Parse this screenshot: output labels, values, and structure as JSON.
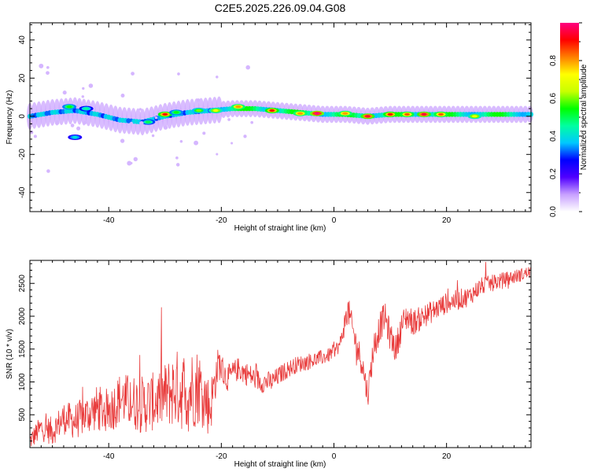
{
  "figure": {
    "title": "C2E5.2025.226.09.04.G08"
  },
  "chart_data": [
    {
      "type": "heatmap",
      "title": "C2E5.2025.226.09.04.G08",
      "xlabel": "Height of straight line (km)",
      "ylabel": "Frequency (Hz)",
      "xlim": [
        -54,
        35
      ],
      "ylim": [
        -50,
        49
      ],
      "xticks": [
        "-40",
        "-20",
        "0",
        "20"
      ],
      "yticks": [
        "-40",
        "-20",
        "0",
        "20",
        "40"
      ],
      "colorbar": {
        "label": "Normalized spectral amplitude",
        "range": [
          0,
          1
        ],
        "ticks": [
          "0.0",
          "0.2",
          "0.4",
          "0.6",
          "0.8"
        ],
        "colormap": [
          "#ffffff",
          "#c8a0ff",
          "#5000ff",
          "#0000ff",
          "#00c8ff",
          "#00ffa0",
          "#00ff00",
          "#c8ff00",
          "#ffff00",
          "#ff8000",
          "#ff0000",
          "#ff0080"
        ]
      },
      "ridge": {
        "x": [
          -54,
          -50,
          -46,
          -42,
          -38,
          -34,
          -30,
          -26,
          -22,
          -18,
          -14,
          -10,
          -6,
          -2,
          2,
          6,
          10,
          14,
          18,
          22,
          26,
          30,
          35
        ],
        "frequency": [
          0,
          2,
          3,
          1,
          -2,
          -3,
          0,
          2,
          3,
          4,
          4,
          3,
          2,
          1,
          1,
          0,
          1,
          1,
          1,
          1,
          1,
          1,
          1
        ]
      },
      "hotspots": [
        {
          "x": -47,
          "y": 5,
          "amp": 0.55
        },
        {
          "x": -44,
          "y": 4,
          "amp": 0.45
        },
        {
          "x": -33,
          "y": -3,
          "amp": 0.5
        },
        {
          "x": -30,
          "y": 1,
          "amp": 0.9
        },
        {
          "x": -28,
          "y": 2,
          "amp": 0.55
        },
        {
          "x": -24,
          "y": 3,
          "amp": 0.6
        },
        {
          "x": -21,
          "y": 3,
          "amp": 0.7
        },
        {
          "x": -17,
          "y": 5,
          "amp": 0.8
        },
        {
          "x": -11,
          "y": 3,
          "amp": 0.9
        },
        {
          "x": -6,
          "y": 1.5,
          "amp": 0.8
        },
        {
          "x": -3,
          "y": 1.5,
          "amp": 1.0
        },
        {
          "x": 2,
          "y": 1.5,
          "amp": 0.8
        },
        {
          "x": 6,
          "y": 0,
          "amp": 0.95
        },
        {
          "x": 10,
          "y": 1,
          "amp": 0.9
        },
        {
          "x": 13,
          "y": 1,
          "amp": 0.85
        },
        {
          "x": 16,
          "y": 1,
          "amp": 0.95
        },
        {
          "x": 19,
          "y": 1,
          "amp": 0.85
        },
        {
          "x": 25,
          "y": 0,
          "amp": 0.7
        },
        {
          "x": -46,
          "y": -11,
          "amp": 0.4
        }
      ]
    },
    {
      "type": "line",
      "xlabel": "Height of straight line (km)",
      "ylabel": "SNR (10 * v/v)",
      "xlim": [
        -54,
        35
      ],
      "ylim": [
        0,
        2850
      ],
      "xticks": [
        "-40",
        "-20",
        "0",
        "20"
      ],
      "yticks": [
        "500",
        "1000",
        "1500",
        "2000",
        "2500"
      ],
      "color": "#e83a3a",
      "series": [
        {
          "x": [
            -54,
            -52,
            -50,
            -48,
            -46,
            -44,
            -42,
            -40,
            -38,
            -36,
            -34,
            -32,
            -30,
            -28,
            -26,
            -24,
            -22,
            -20.5,
            -19,
            -17,
            -15,
            -13,
            -11,
            -9,
            -7,
            -5,
            -3,
            -1,
            1,
            2.5,
            4,
            5,
            6,
            7,
            8,
            9,
            10,
            11,
            12,
            13,
            14,
            16,
            18,
            20,
            22,
            24,
            26,
            28,
            30,
            32,
            34,
            35
          ],
          "y": [
            100,
            300,
            250,
            450,
            400,
            500,
            600,
            550,
            750,
            700,
            650,
            700,
            800,
            900,
            850,
            950,
            600,
            1300,
            1050,
            1200,
            1100,
            1000,
            1000,
            1150,
            1250,
            1300,
            1350,
            1400,
            1550,
            2100,
            1550,
            1300,
            800,
            1500,
            1800,
            2000,
            1700,
            1500,
            1850,
            2000,
            1900,
            2000,
            2100,
            2200,
            2250,
            2300,
            2450,
            2500,
            2550,
            2600,
            2650,
            2680
          ],
          "amp": [
            150,
            200,
            220,
            250,
            280,
            300,
            350,
            350,
            400,
            420,
            450,
            450,
            500,
            600,
            650,
            600,
            450,
            260,
            200,
            180,
            180,
            170,
            160,
            140,
            130,
            130,
            120,
            110,
            110,
            220,
            220,
            220,
            200,
            240,
            240,
            230,
            230,
            220,
            220,
            220,
            200,
            180,
            170,
            160,
            160,
            150,
            140,
            130,
            120,
            110,
            100,
            100
          ]
        }
      ]
    }
  ]
}
